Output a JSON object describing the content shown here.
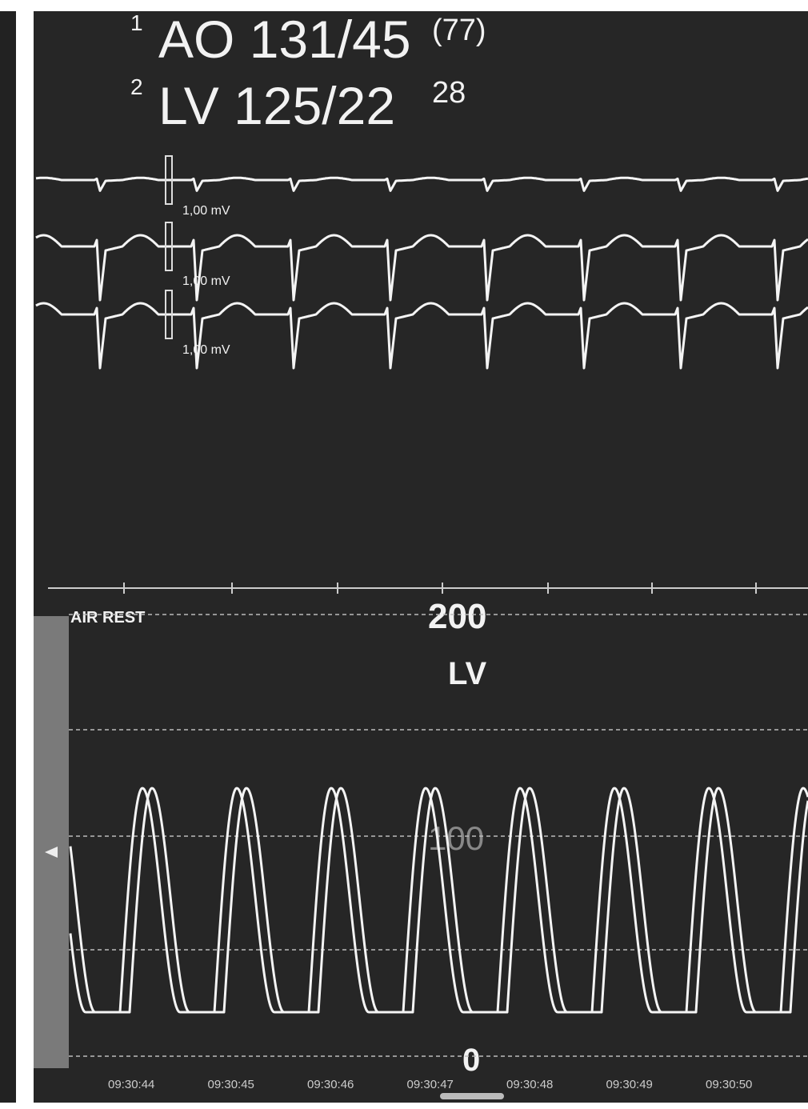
{
  "readouts": [
    {
      "channel": "1",
      "label": "AO 131/45",
      "mean": "(77)"
    },
    {
      "channel": "2",
      "label": "LV 125/22",
      "mean": "28"
    }
  ],
  "ecg": {
    "scales": [
      "1,00 mV",
      "1,00 mV",
      "1,00 mV"
    ]
  },
  "pressure": {
    "mode": "AIR REST",
    "top": "200",
    "channel": "LV",
    "mid": "100",
    "bottom": "0",
    "times": [
      "09:30:44",
      "09:30:45",
      "09:30:46",
      "09:30:47",
      "09:30:48",
      "09:30:49",
      "09:30:50"
    ]
  }
}
